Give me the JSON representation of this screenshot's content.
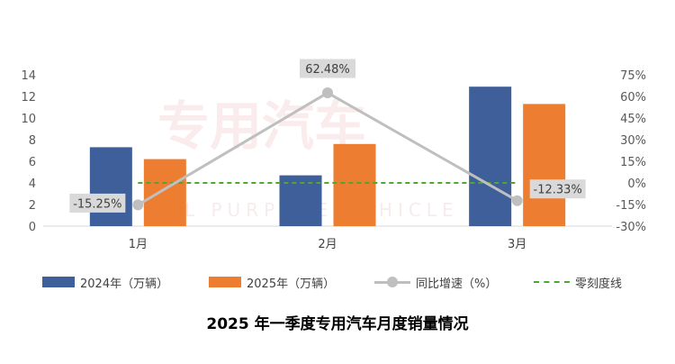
{
  "chart_data": {
    "type": "bar",
    "title": "2025 年一季度专用汽车月度销量情况",
    "categories": [
      "1月",
      "2月",
      "3月"
    ],
    "series": [
      {
        "name": "2024年（万辆）",
        "type": "bar",
        "axis": "left",
        "color": "#3E5F99",
        "values": [
          7.3,
          4.7,
          12.9
        ]
      },
      {
        "name": "2025年（万辆）",
        "type": "bar",
        "axis": "left",
        "color": "#ED7D31",
        "values": [
          6.2,
          7.6,
          11.3
        ]
      },
      {
        "name": "同比增速（%）",
        "type": "line",
        "axis": "right",
        "color": "#BFBFBF",
        "values": [
          -15.25,
          62.48,
          -12.33
        ],
        "labels": [
          "-15.25%",
          "62.48%",
          "-12.33%"
        ]
      },
      {
        "name": "零刻度线",
        "type": "line",
        "axis": "right",
        "style": "dashed",
        "color": "#4EA72E",
        "values": [
          0,
          0,
          0
        ]
      }
    ],
    "y_left": {
      "min": 0,
      "max": 14,
      "ticks": [
        "0",
        "2",
        "4",
        "6",
        "8",
        "10",
        "12",
        "14"
      ]
    },
    "y_right": {
      "min": -30,
      "max": 75,
      "ticks": [
        "-30%",
        "-15%",
        "0%",
        "15%",
        "30%",
        "45%",
        "60%",
        "75%"
      ]
    },
    "legend_position": "bottom",
    "grid": false,
    "watermark": "专用汽车"
  }
}
